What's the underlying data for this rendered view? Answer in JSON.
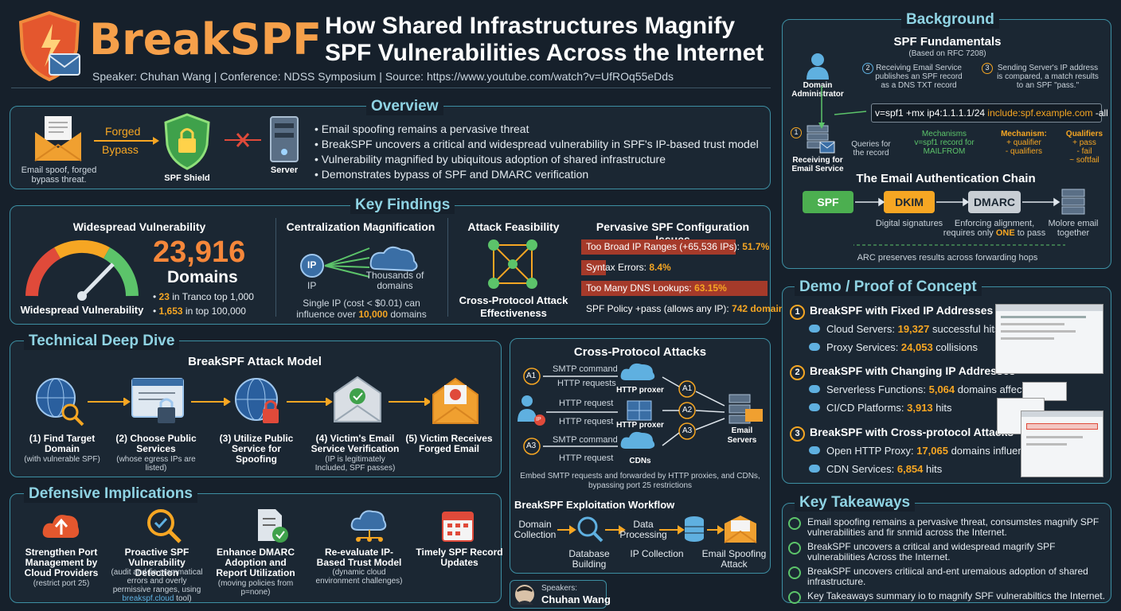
{
  "header": {
    "brand": "BreakSPF",
    "title_line1": "How Shared Infrastructures Magnify",
    "title_line2": "SPF Vulnerabilities Across the Internet",
    "meta": "Speaker: Chuhan Wang | Conference: NDSS Symposium | Source: https://www.youtube.com/watch?v=UfROq55eDds"
  },
  "overview": {
    "title": "Overview",
    "forged": "Forged",
    "bypass": "Bypass",
    "spoof_caption": "Email spoof, forged bypass threat.",
    "shield": "SPF Shield",
    "server": "Server",
    "bullets": [
      "Email spoofing remains a pervasive threat",
      "BreakSPF uncovers a critical and widespread vulnerability in SPF's IP-based trust model",
      "Vulnerability magnified by ubiquitous adoption of shared infrastructure",
      "Demonstrates bypass of SPF and DMARC verification"
    ]
  },
  "findings": {
    "title": "Key Findings",
    "wide_title": "Widespread Vulnerability",
    "count": "23,916",
    "domains": "Domains",
    "gauge_caption": "Widespread Vulnerability",
    "tranco1_n": "23",
    "tranco1": " in Tranco top 1,000",
    "tranco2_n": "1,653",
    "tranco2": " in top 100,000",
    "central_title": "Centralization Magnification",
    "ip": "IP",
    "ip_label": "IP",
    "thousands": "Thousands of domains",
    "single_ip": "Single IP (cost < $0.01) can",
    "influence": "influence over ",
    "influence_n": "10,000",
    "influence_end": " domains",
    "attack_title": "Attack Feasibility",
    "attack_caption": "Cross-Protocol Attack Effectiveness",
    "config_title": "Pervasive SPF Configuration Issues",
    "config": [
      {
        "label": "Too Broad IP Ranges (+65,536 IPs): ",
        "value": "51.7%",
        "fill": 0.517
      },
      {
        "label": "Syntax Errors: ",
        "value": "8.4%",
        "fill": 0.084
      },
      {
        "label": "Too Many DNS Lookups: ",
        "value": "63.15%",
        "fill": 0.6315
      },
      {
        "label": "SPF Policy +pass (allows any IP): ",
        "value": "742 domains",
        "fill": 0
      }
    ]
  },
  "deep": {
    "title": "Technical Deep Dive",
    "model_title": "BreakSPF Attack Model",
    "steps": [
      {
        "t": "(1) Find Target Domain",
        "s": "(with vulnerable SPF)"
      },
      {
        "t": "(2) Choose Public Services",
        "s": "(whose egress IPs are listed)"
      },
      {
        "t": "(3) Utilize Public Service for Spoofing",
        "s": ""
      },
      {
        "t": "(4) Victim's Email Service Verification",
        "s": "(IP is legitimately Included, SPF passes)"
      },
      {
        "t": "(5) Victim Receives Forged Email",
        "s": ""
      }
    ]
  },
  "defense": {
    "title": "Defensive Implications",
    "items": [
      {
        "t": "Strengthen Port Management by Cloud Providers",
        "s": "(restrict port 25)"
      },
      {
        "t": "Proactive SPF Vulnerability Detection",
        "s": "(audit and fie grammatical errors and overly permissive ranges, using ",
        "link": "breakspf.cloud",
        "s2": " tool)"
      },
      {
        "t": "Enhance DMARC Adoption and Report Utilization",
        "s": "(moving policies from p=none)"
      },
      {
        "t": "Re-evaluate IP-Based Trust Model",
        "s": "(dynamic cloud environment challenges)"
      },
      {
        "t": "Timely SPF Record Updates",
        "s": ""
      }
    ]
  },
  "cross": {
    "title": "Cross-Protocol Attacks",
    "a1": "A1",
    "a2": "A2",
    "a3": "A3",
    "smtp": "SMTP command",
    "http": "HTTP requests",
    "http_req": "HTTP request",
    "http_req2": "HTTP request",
    "smtp2": "SMTP command",
    "http_req3": "HTTP request",
    "proxer": "HTTP proxer",
    "proxer2": "HTTP proxer",
    "cdns": "CDNs",
    "email_servers": "Email Servers",
    "ip": "IP",
    "caption": "Embed SMTP requests and forwarded by HTTP proxies, and CDNs, bypassing port 25 restrictions",
    "wf_title": "BreakSPF Exploitation Workflow",
    "wf": [
      "Domain Collection",
      "Data Processing",
      "Database Building",
      "IP Collection",
      "Email Spoofing Attack"
    ]
  },
  "speaker": {
    "label": "Speakers:",
    "name": "Chuhan Wang"
  },
  "background": {
    "title": "Background",
    "fund_title": "SPF Fundamentals",
    "rfc": "(Based on RFC 7208)",
    "admin": "Domain Administrator",
    "receiving": "Receiving for Email Service",
    "n1": "1",
    "n2": "2",
    "n3": "3",
    "step2": "Receiving Email Service publishes an SPF record as a DNS TXT record",
    "step3": "Sending Server's IP address is compared, a match results to an SPF \"pass.\"",
    "queries": "Queries for the record",
    "rec_a": "v=spf1 +mx ip4:1.1.1.1/24 ",
    "rec_b": "include:spf.example.com",
    "rec_c": " -all",
    "mech1": "Mechanisms v=spf1 record for MAILFROM",
    "mech2": "Mechanism:",
    "mech2b": "+ qualifier",
    "mech2c": "- qualifiers",
    "qual": "Qualifiers",
    "q1": "+ pass",
    "q2": "- fail",
    "q3": "~ softfail",
    "chain_title": "The Email Authentication Chain",
    "spf": "SPF",
    "dkim": "DKIM",
    "dmarc": "DMARC",
    "dig": "Digital signatures",
    "enf": "Enforcing alignment, requires only ",
    "one": "ONE",
    "enf2": " to pass",
    "more": "Molore email together",
    "arc": "ARC preserves results across forwarding hops"
  },
  "demo": {
    "title": "Demo / Proof of Concept",
    "groups": [
      {
        "n": "1",
        "t": "BreakSPF with Fixed IP Addresses",
        "items": [
          {
            "l": "Cloud Servers: ",
            "v": "19,327",
            "e": " successful hits"
          },
          {
            "l": "Proxy Services: ",
            "v": "24,053",
            "e": " collisions"
          }
        ]
      },
      {
        "n": "2",
        "t": "BreakSPF with Changing IP Addresses",
        "items": [
          {
            "l": "Serverless Functions: ",
            "v": "5,064",
            "e": " domains affected"
          },
          {
            "l": "CI/CD Platforms: ",
            "v": "3,913",
            "e": " hits"
          }
        ]
      },
      {
        "n": "3",
        "t": "BreakSPF with Cross-protocol Attacks",
        "items": [
          {
            "l": "Open HTTP Proxy: ",
            "v": "17,065",
            "e": " domains influenced"
          },
          {
            "l": "CDN Services: ",
            "v": "6,854",
            "e": " hits"
          }
        ]
      }
    ]
  },
  "takeaways": {
    "title": "Key Takeaways",
    "items": [
      "Email spoofing remains a pervasive threat, consumstes magnify SPF vulnerabilities and fir snmid across the Internet.",
      "BreakSPF uncovers a critical and widespread magrify SPF vulnerabilities Across the Internet.",
      "BreakSPF uncovers critiical and-ent uremaious adoption of shared infrastructure.",
      "Key Takeaways summary io to magnify SPF vulnerabiltics the Internet."
    ]
  },
  "colors": {
    "accent": "#f6a623",
    "teal": "#3d8fa3",
    "green": "#5cc46a"
  }
}
